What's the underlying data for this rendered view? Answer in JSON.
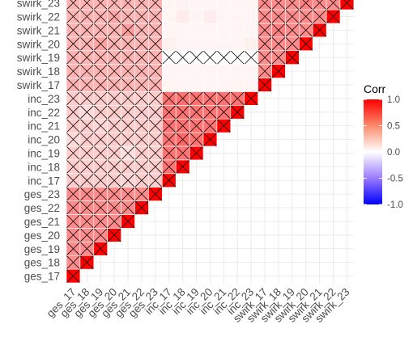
{
  "chart_data": {
    "type": "heatmap",
    "title": "",
    "xlabel": "",
    "ylabel": "",
    "variables": [
      "ges_17",
      "ges_18",
      "ges_19",
      "ges_20",
      "ges_21",
      "ges_22",
      "ges_23",
      "inc_17",
      "inc_18",
      "inc_19",
      "inc_20",
      "inc_21",
      "inc_22",
      "inc_23",
      "swirk_17",
      "swirk_18",
      "swirk_19",
      "swirk_20",
      "swirk_21",
      "swirk_22",
      "swirk_23"
    ],
    "legend": {
      "title": "Corr",
      "ticks": [
        1.0,
        0.5,
        0.0,
        -0.5,
        -1.0
      ],
      "tick_labels": [
        "1.0",
        "0.5",
        "0.0",
        "-0.5",
        "-1.0"
      ],
      "placement": "right",
      "colors": {
        "low": "#0000ff",
        "mid": "#ffffff",
        "high": "#ff0000"
      }
    },
    "grid": true,
    "crossed_meaning": "insignificant",
    "blocks": {
      "ges_ges": 0.45,
      "inc_inc": 0.55,
      "swirk_swirk": 0.45,
      "inc_ges": 0.2,
      "swirk_ges": 0.3,
      "swirk_inc": 0.04
    },
    "cell_overrides": [
      {
        "row": "swirk_19",
        "col": "inc_17",
        "value": 0.0,
        "crossed": true
      },
      {
        "row": "swirk_19",
        "col": "inc_18",
        "value": 0.0,
        "crossed": true
      },
      {
        "row": "swirk_19",
        "col": "inc_19",
        "value": 0.0,
        "crossed": true
      },
      {
        "row": "swirk_19",
        "col": "inc_20",
        "value": 0.0,
        "crossed": true
      },
      {
        "row": "swirk_19",
        "col": "inc_21",
        "value": 0.0,
        "crossed": true
      },
      {
        "row": "swirk_19",
        "col": "inc_22",
        "value": 0.0,
        "crossed": true
      },
      {
        "row": "swirk_19",
        "col": "inc_23",
        "value": 0.0,
        "crossed": true
      },
      {
        "row": "swirk_20",
        "col": "inc_17",
        "value": 0.06
      },
      {
        "row": "swirk_20",
        "col": "inc_23",
        "value": 0.06
      },
      {
        "row": "swirk_22",
        "col": "inc_18",
        "value": 0.08
      },
      {
        "row": "swirk_22",
        "col": "inc_20",
        "value": 0.07
      },
      {
        "row": "swirk_23",
        "col": "inc_18",
        "value": 0.05
      },
      {
        "row": "swirk_22",
        "col": "ges_20",
        "value": 0.35
      },
      {
        "row": "swirk_21",
        "col": "ges_21",
        "value": 0.38
      },
      {
        "row": "swirk_20",
        "col": "ges_19",
        "value": 0.36
      },
      {
        "row": "inc_20",
        "col": "ges_17",
        "value": 0.15
      },
      {
        "row": "inc_22",
        "col": "ges_18",
        "value": 0.14
      },
      {
        "row": "inc_21",
        "col": "ges_19",
        "value": 0.16
      },
      {
        "row": "inc_17",
        "col": "ges_21",
        "value": 0.17
      },
      {
        "row": "inc_19",
        "col": "ges_21",
        "value": 0.13
      },
      {
        "row": "swirk_21",
        "col": "swirk_18",
        "value": 0.5
      },
      {
        "row": "swirk_23",
        "col": "swirk_20",
        "value": 0.5
      },
      {
        "row": "inc_20",
        "col": "inc_18",
        "value": 0.6
      }
    ],
    "crossed_rule": "all off-diagonal cells are crossed except swirk_x vs inc_y cells, which are uncrossed unless listed as crossed in cell_overrides",
    "diagonal": {
      "value": 1.0,
      "crossed": true
    }
  }
}
